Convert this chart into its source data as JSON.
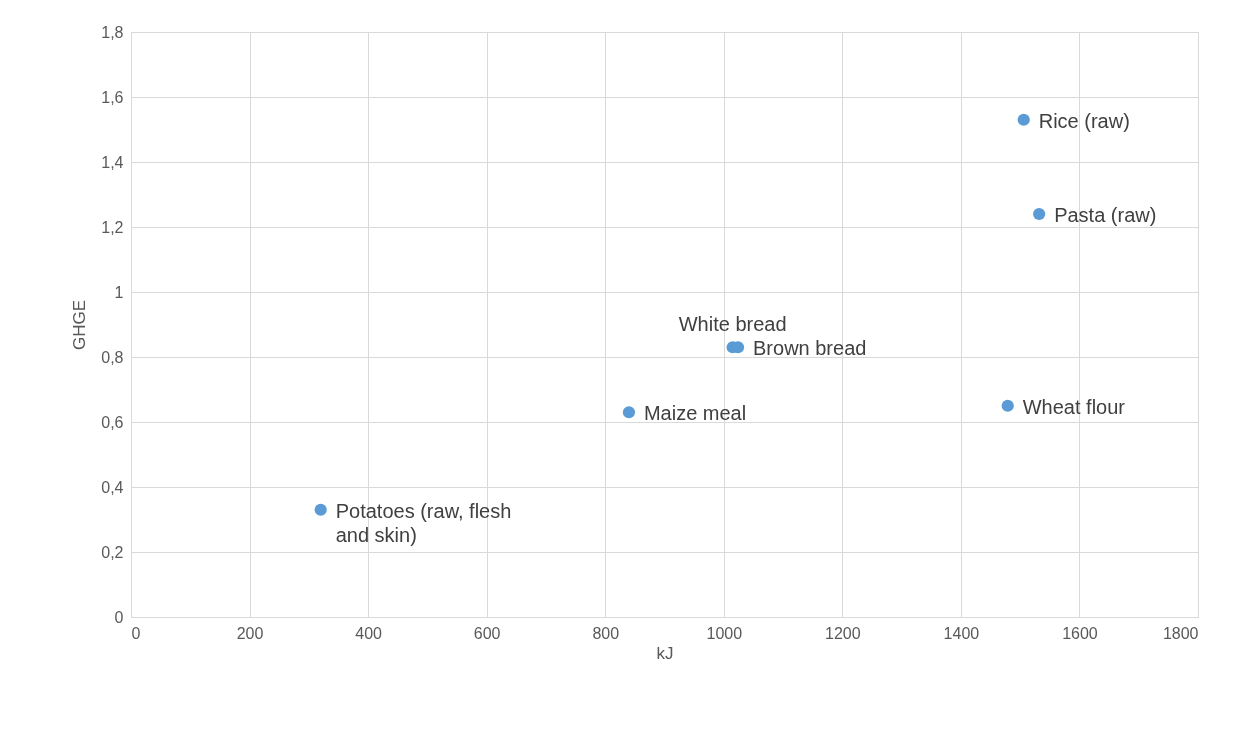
{
  "chart_data": {
    "type": "scatter",
    "xlabel": "kJ",
    "ylabel": "GHGE",
    "series": [
      {
        "name": "Potatoes (raw, flesh and skin)",
        "color": "#5b9bd5",
        "x": [
          320
        ],
        "values": [
          0.33
        ]
      },
      {
        "name": "Maize meal",
        "color": "#5b9bd5",
        "x": [
          840
        ],
        "values": [
          0.63
        ]
      },
      {
        "name": "White bread",
        "color": "#5b9bd5",
        "x": [
          1015
        ],
        "values": [
          0.83
        ]
      },
      {
        "name": "Brown bread",
        "color": "#5b9bd5",
        "x": [
          1024
        ],
        "values": [
          0.83
        ]
      },
      {
        "name": "Wheat flour",
        "color": "#5b9bd5",
        "x": [
          1479
        ],
        "values": [
          0.65
        ]
      },
      {
        "name": "Rice (raw)",
        "color": "#5b9bd5",
        "x": [
          1506
        ],
        "values": [
          1.53
        ]
      },
      {
        "name": "Pasta (raw)",
        "color": "#5b9bd5",
        "x": [
          1532
        ],
        "values": [
          1.24
        ]
      }
    ],
    "xlim": [
      0,
      1800
    ],
    "xticks": [
      0,
      200,
      400,
      600,
      800,
      1000,
      1200,
      1400,
      1600,
      1800
    ],
    "ylim": [
      0,
      1.8
    ],
    "yticks": [
      0,
      {
        "value": 0.2,
        "label": "0,2"
      },
      {
        "value": 0.4,
        "label": "0,4"
      },
      {
        "value": 0.6,
        "label": "0,6"
      },
      {
        "value": 0.8,
        "label": "0,8"
      },
      1,
      {
        "value": 1.2,
        "label": "1,2"
      },
      {
        "value": 1.4,
        "label": "1,4"
      },
      {
        "value": 1.6,
        "label": "1,6"
      },
      {
        "value": 1.8,
        "label": "1,8"
      }
    ],
    "grid": true,
    "marker": "circle",
    "legend": false
  }
}
